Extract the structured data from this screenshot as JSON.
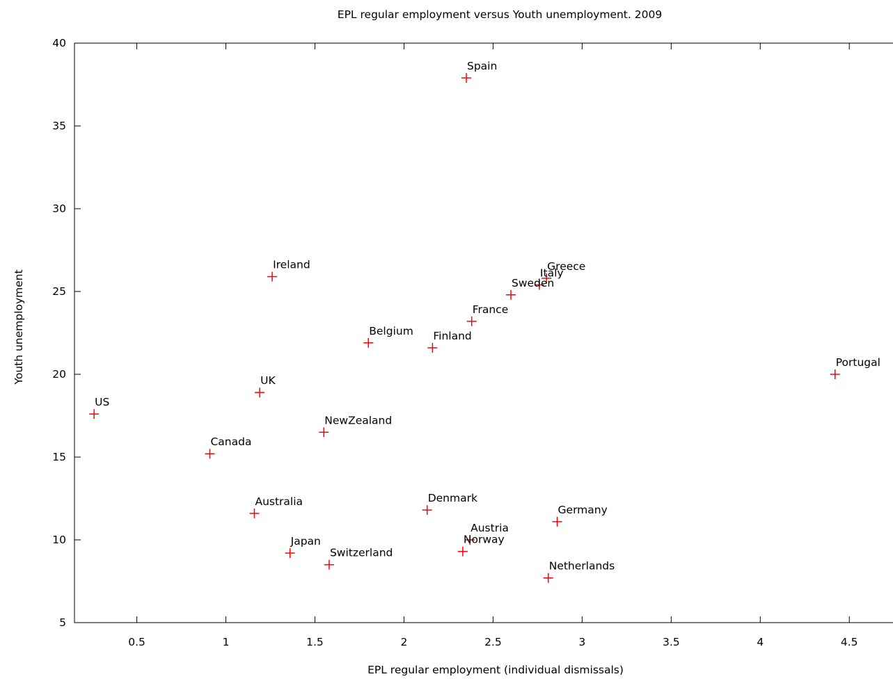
{
  "chart_data": {
    "type": "scatter",
    "title": "EPL regular employment versus Youth unemployment. 2009",
    "xlabel": "EPL regular employment (individual dismissals)",
    "ylabel": "Youth unemployment",
    "xlim": [
      0.15,
      4.8
    ],
    "ylim": [
      5,
      40
    ],
    "xticks": [
      "0.5",
      "1",
      "1.5",
      "2",
      "2.5",
      "3",
      "3.5",
      "4",
      "4.5"
    ],
    "yticks": [
      "5",
      "10",
      "15",
      "20",
      "25",
      "30",
      "35",
      "40"
    ],
    "grid": false,
    "marker": "+",
    "marker_color": "#ff0000",
    "points": [
      {
        "label": "Spain",
        "x": 2.35,
        "y": 37.9
      },
      {
        "label": "Ireland",
        "x": 1.26,
        "y": 25.9
      },
      {
        "label": "Greece",
        "x": 2.8,
        "y": 25.8
      },
      {
        "label": "Italy",
        "x": 2.76,
        "y": 25.4
      },
      {
        "label": "Sweden",
        "x": 2.6,
        "y": 24.8
      },
      {
        "label": "France",
        "x": 2.38,
        "y": 23.2
      },
      {
        "label": "Belgium",
        "x": 1.8,
        "y": 21.9
      },
      {
        "label": "Finland",
        "x": 2.16,
        "y": 21.6
      },
      {
        "label": "Portugal",
        "x": 4.42,
        "y": 20.0
      },
      {
        "label": "UK",
        "x": 1.19,
        "y": 18.9
      },
      {
        "label": "US",
        "x": 0.26,
        "y": 17.6
      },
      {
        "label": "NewZealand",
        "x": 1.55,
        "y": 16.5
      },
      {
        "label": "Canada",
        "x": 0.91,
        "y": 15.2
      },
      {
        "label": "Denmark",
        "x": 2.13,
        "y": 11.8
      },
      {
        "label": "Australia",
        "x": 1.16,
        "y": 11.6
      },
      {
        "label": "Germany",
        "x": 2.86,
        "y": 11.1
      },
      {
        "label": "Austria",
        "x": 2.37,
        "y": 10.0
      },
      {
        "label": "Norway",
        "x": 2.33,
        "y": 9.3
      },
      {
        "label": "Japan",
        "x": 1.36,
        "y": 9.2
      },
      {
        "label": "Switzerland",
        "x": 1.58,
        "y": 8.5
      },
      {
        "label": "Netherlands",
        "x": 2.81,
        "y": 7.7
      }
    ]
  }
}
